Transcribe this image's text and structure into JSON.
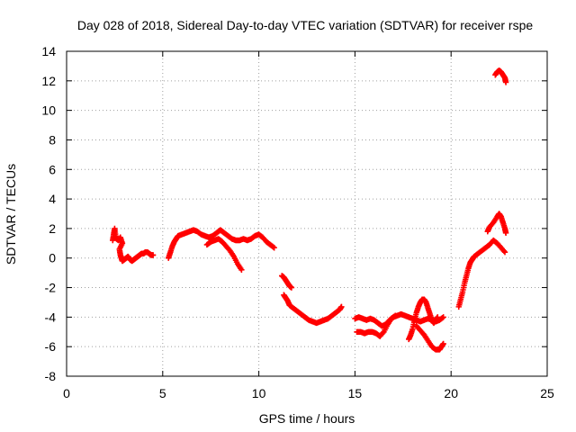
{
  "chart_data": {
    "type": "scatter",
    "title": "Day 028 of 2018, Sidereal Day-to-day VTEC variation (SDTVAR) for receiver rspe",
    "xlabel": "GPS time / hours",
    "ylabel": "SDTVAR / TECUs",
    "xlim": [
      0,
      25
    ],
    "ylim": [
      -8,
      14
    ],
    "xticks": [
      "0",
      "5",
      "10",
      "15",
      "20",
      "25"
    ],
    "yticks": [
      "-8",
      "-6",
      "-4",
      "-2",
      "0",
      "2",
      "4",
      "6",
      "8",
      "10",
      "12",
      "14"
    ],
    "grid": true,
    "marker": "plus",
    "series": [
      {
        "name": "SDTVAR",
        "color": "#ff0000",
        "segments": [
          [
            [
              2.4,
              1.2
            ],
            [
              2.45,
              1.6
            ],
            [
              2.5,
              2.0
            ],
            [
              2.55,
              1.5
            ],
            [
              2.6,
              1.3
            ],
            [
              2.7,
              1.2
            ],
            [
              2.8,
              1.4
            ],
            [
              2.9,
              1.0
            ],
            [
              2.75,
              0.6
            ],
            [
              2.8,
              0.2
            ],
            [
              2.85,
              0.0
            ],
            [
              2.9,
              -0.2
            ],
            [
              3.0,
              -0.1
            ],
            [
              3.1,
              0.0
            ],
            [
              3.2,
              0.1
            ],
            [
              3.3,
              -0.1
            ],
            [
              3.4,
              -0.2
            ],
            [
              3.5,
              -0.1
            ],
            [
              3.6,
              0.0
            ],
            [
              3.7,
              0.1
            ],
            [
              3.8,
              0.2
            ],
            [
              3.9,
              0.3
            ],
            [
              4.0,
              0.3
            ],
            [
              4.1,
              0.4
            ],
            [
              4.2,
              0.4
            ],
            [
              4.3,
              0.3
            ],
            [
              4.4,
              0.2
            ],
            [
              4.5,
              0.2
            ]
          ],
          [
            [
              5.3,
              0.0
            ],
            [
              5.4,
              0.4
            ],
            [
              5.5,
              0.8
            ],
            [
              5.6,
              1.1
            ],
            [
              5.7,
              1.3
            ],
            [
              5.8,
              1.5
            ],
            [
              6.0,
              1.6
            ],
            [
              6.2,
              1.7
            ],
            [
              6.4,
              1.8
            ],
            [
              6.6,
              1.9
            ],
            [
              6.8,
              1.8
            ],
            [
              7.0,
              1.6
            ],
            [
              7.2,
              1.5
            ],
            [
              7.4,
              1.4
            ],
            [
              7.6,
              1.5
            ],
            [
              7.8,
              1.7
            ],
            [
              8.0,
              1.9
            ],
            [
              8.2,
              1.7
            ],
            [
              8.4,
              1.5
            ],
            [
              8.6,
              1.3
            ],
            [
              8.8,
              1.2
            ],
            [
              9.0,
              1.2
            ],
            [
              9.2,
              1.3
            ],
            [
              9.4,
              1.2
            ],
            [
              9.6,
              1.3
            ],
            [
              9.8,
              1.5
            ],
            [
              10.0,
              1.6
            ],
            [
              10.2,
              1.4
            ],
            [
              10.4,
              1.1
            ],
            [
              10.6,
              0.9
            ],
            [
              10.8,
              0.7
            ]
          ],
          [
            [
              7.3,
              0.9
            ],
            [
              7.5,
              1.1
            ],
            [
              7.7,
              1.2
            ],
            [
              7.9,
              1.3
            ],
            [
              8.1,
              1.1
            ],
            [
              8.3,
              0.8
            ],
            [
              8.5,
              0.5
            ],
            [
              8.7,
              0.1
            ],
            [
              8.9,
              -0.4
            ],
            [
              9.1,
              -0.8
            ]
          ],
          [
            [
              11.2,
              -1.2
            ],
            [
              11.3,
              -1.3
            ],
            [
              11.4,
              -1.5
            ],
            [
              11.5,
              -1.7
            ],
            [
              11.6,
              -1.9
            ],
            [
              11.7,
              -2.0
            ]
          ],
          [
            [
              11.3,
              -2.5
            ],
            [
              11.4,
              -2.7
            ],
            [
              11.5,
              -2.9
            ],
            [
              11.6,
              -3.2
            ],
            [
              11.8,
              -3.4
            ],
            [
              12.0,
              -3.6
            ],
            [
              12.2,
              -3.8
            ],
            [
              12.4,
              -4.0
            ],
            [
              12.6,
              -4.2
            ],
            [
              12.8,
              -4.3
            ],
            [
              13.0,
              -4.4
            ],
            [
              13.2,
              -4.3
            ],
            [
              13.4,
              -4.2
            ],
            [
              13.6,
              -4.1
            ],
            [
              13.8,
              -3.9
            ],
            [
              14.0,
              -3.7
            ],
            [
              14.2,
              -3.5
            ],
            [
              14.3,
              -3.3
            ]
          ],
          [
            [
              15.0,
              -4.1
            ],
            [
              15.2,
              -4.0
            ],
            [
              15.4,
              -4.1
            ],
            [
              15.6,
              -4.2
            ],
            [
              15.8,
              -4.1
            ],
            [
              16.0,
              -4.2
            ],
            [
              16.2,
              -4.4
            ],
            [
              16.4,
              -4.6
            ],
            [
              16.6,
              -4.5
            ],
            [
              16.8,
              -4.2
            ],
            [
              17.0,
              -4.0
            ],
            [
              17.2,
              -3.9
            ],
            [
              17.4,
              -3.8
            ],
            [
              17.6,
              -3.9
            ],
            [
              17.8,
              -4.0
            ],
            [
              18.0,
              -4.1
            ],
            [
              18.2,
              -4.2
            ],
            [
              18.4,
              -4.3
            ],
            [
              18.6,
              -4.2
            ],
            [
              18.8,
              -4.1
            ],
            [
              19.0,
              -4.2
            ],
            [
              19.2,
              -4.3
            ],
            [
              19.4,
              -4.2
            ],
            [
              19.6,
              -4.0
            ]
          ],
          [
            [
              15.1,
              -5.0
            ],
            [
              15.3,
              -5.0
            ],
            [
              15.5,
              -5.1
            ],
            [
              15.7,
              -5.0
            ],
            [
              15.9,
              -5.0
            ],
            [
              16.1,
              -5.1
            ],
            [
              16.3,
              -5.3
            ],
            [
              16.5,
              -5.0
            ],
            [
              16.7,
              -4.5
            ],
            [
              16.9,
              -4.1
            ],
            [
              17.1,
              -3.9
            ]
          ],
          [
            [
              17.8,
              -5.5
            ],
            [
              17.9,
              -5.2
            ],
            [
              18.0,
              -4.8
            ],
            [
              18.1,
              -4.2
            ],
            [
              18.2,
              -3.7
            ],
            [
              18.3,
              -3.3
            ],
            [
              18.4,
              -3.0
            ],
            [
              18.5,
              -2.8
            ],
            [
              18.6,
              -2.8
            ],
            [
              18.7,
              -3.0
            ],
            [
              18.8,
              -3.4
            ],
            [
              18.9,
              -3.8
            ],
            [
              19.0,
              -4.2
            ],
            [
              19.1,
              -4.4
            ],
            [
              19.2,
              -4.2
            ],
            [
              19.3,
              -4.0
            ]
          ],
          [
            [
              18.2,
              -4.6
            ],
            [
              18.4,
              -4.9
            ],
            [
              18.6,
              -5.2
            ],
            [
              18.8,
              -5.6
            ],
            [
              19.0,
              -6.0
            ],
            [
              19.2,
              -6.2
            ],
            [
              19.4,
              -6.2
            ],
            [
              19.5,
              -6.0
            ],
            [
              19.6,
              -5.8
            ]
          ],
          [
            [
              20.4,
              -3.3
            ],
            [
              20.5,
              -2.8
            ],
            [
              20.6,
              -2.3
            ],
            [
              20.7,
              -1.7
            ],
            [
              20.8,
              -1.2
            ],
            [
              20.9,
              -0.7
            ],
            [
              21.0,
              -0.3
            ],
            [
              21.1,
              -0.1
            ],
            [
              21.2,
              0.1
            ],
            [
              21.4,
              0.3
            ],
            [
              21.6,
              0.5
            ],
            [
              21.8,
              0.7
            ],
            [
              22.0,
              0.9
            ],
            [
              22.2,
              1.2
            ],
            [
              22.4,
              1.0
            ],
            [
              22.6,
              0.7
            ],
            [
              22.8,
              0.4
            ]
          ],
          [
            [
              21.9,
              1.8
            ],
            [
              22.0,
              2.1
            ],
            [
              22.2,
              2.4
            ],
            [
              22.4,
              2.8
            ],
            [
              22.5,
              3.0
            ],
            [
              22.6,
              2.8
            ],
            [
              22.7,
              2.4
            ],
            [
              22.8,
              2.0
            ],
            [
              22.85,
              1.7
            ]
          ],
          [
            [
              22.3,
              12.4
            ],
            [
              22.4,
              12.6
            ],
            [
              22.5,
              12.7
            ],
            [
              22.6,
              12.6
            ],
            [
              22.7,
              12.4
            ],
            [
              22.8,
              12.2
            ],
            [
              22.85,
              11.9
            ]
          ]
        ]
      }
    ]
  }
}
